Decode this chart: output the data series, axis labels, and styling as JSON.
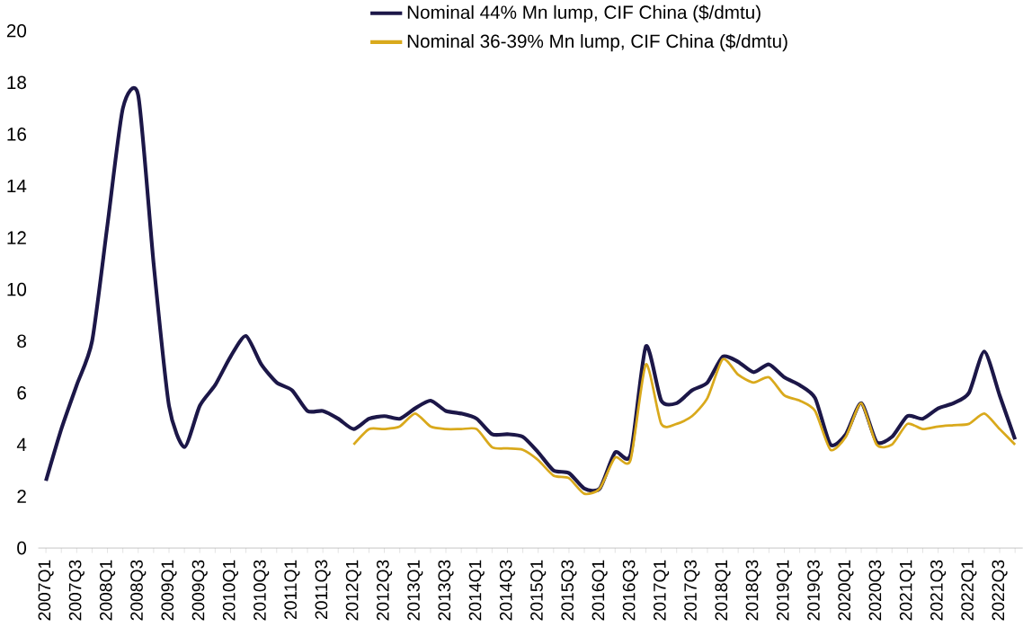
{
  "chart_data": {
    "type": "line",
    "categories": [
      "2007Q1",
      null,
      "2007Q3",
      null,
      "2008Q1",
      null,
      "2008Q3",
      null,
      "2009Q1",
      null,
      "2009Q3",
      null,
      "2010Q1",
      null,
      "2010Q3",
      null,
      "2011Q1",
      null,
      "2011Q3",
      null,
      "2012Q1",
      null,
      "2012Q3",
      null,
      "2013Q1",
      null,
      "2013Q3",
      null,
      "2014Q1",
      null,
      "2014Q3",
      null,
      "2015Q1",
      null,
      "2015Q3",
      null,
      "2016Q1",
      null,
      "2016Q3",
      null,
      "2017Q1",
      null,
      "2017Q3",
      null,
      "2018Q1",
      null,
      "2018Q3",
      null,
      "2019Q1",
      null,
      "2019Q3",
      null,
      "2020Q1",
      null,
      "2020Q3",
      null,
      "2021Q1",
      null,
      "2021Q3",
      null,
      "2022Q1",
      null,
      "2022Q3",
      null
    ],
    "series": [
      {
        "name": "Nominal 44% Mn lump, CIF China ($/dmtu)",
        "color": "#1c1748",
        "values": [
          2.6,
          4.6,
          6.3,
          8.0,
          12.5,
          17.0,
          17.5,
          11.0,
          5.5,
          3.9,
          5.5,
          6.3,
          7.4,
          8.2,
          7.1,
          6.4,
          6.1,
          5.3,
          5.3,
          5.0,
          4.6,
          5.0,
          5.1,
          5.0,
          5.4,
          5.7,
          5.3,
          5.2,
          5.0,
          4.4,
          4.4,
          4.3,
          3.7,
          3.0,
          2.9,
          2.3,
          2.3,
          3.7,
          3.6,
          7.8,
          5.7,
          5.6,
          6.1,
          6.4,
          7.4,
          7.2,
          6.8,
          7.1,
          6.6,
          6.3,
          5.8,
          4.0,
          4.4,
          5.6,
          4.1,
          4.3,
          5.1,
          5.0,
          5.4,
          5.6,
          6.0,
          7.6,
          5.9,
          4.2
        ]
      },
      {
        "name": "Nominal 36-39% Mn lump, CIF China ($/dmtu)",
        "color": "#d9a91c",
        "values": [
          null,
          null,
          null,
          null,
          null,
          null,
          null,
          null,
          null,
          null,
          null,
          null,
          null,
          null,
          null,
          null,
          null,
          null,
          null,
          null,
          4.0,
          4.6,
          4.6,
          4.7,
          5.2,
          4.7,
          4.6,
          4.6,
          4.6,
          3.9,
          3.85,
          3.8,
          3.4,
          2.8,
          2.7,
          2.1,
          2.3,
          3.5,
          3.4,
          7.1,
          4.8,
          4.8,
          5.1,
          5.8,
          7.3,
          6.7,
          6.4,
          6.6,
          5.9,
          5.7,
          5.3,
          3.8,
          4.3,
          5.6,
          4.0,
          4.0,
          4.8,
          4.6,
          4.7,
          4.75,
          4.8,
          5.2,
          4.6,
          4.0
        ]
      }
    ],
    "ylim": [
      0,
      20
    ],
    "yticks": [
      0,
      2,
      4,
      6,
      8,
      10,
      12,
      14,
      16,
      18,
      20
    ],
    "grid": false,
    "legend": "top",
    "marker": "none",
    "line_style": "solid"
  }
}
